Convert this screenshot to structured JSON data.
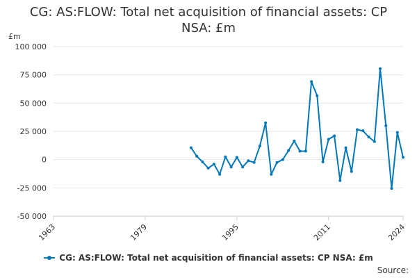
{
  "chart_data": {
    "type": "line",
    "title": "CG: AS:FLOW: Total net acquisition of financial assets: CP NSA: £m",
    "unit_label": "£m",
    "xlim": [
      1963,
      2024
    ],
    "ylim": [
      -50000,
      100000
    ],
    "x_ticks": [
      "1963",
      "1979",
      "1995",
      "2011",
      "2024"
    ],
    "y_ticks": [
      "100 000",
      "75 000",
      "50 000",
      "25 000",
      "0",
      "-25 000",
      "-50 000"
    ],
    "grid": true,
    "legend_position": "bottom",
    "series": [
      {
        "name": "CG: AS:FLOW: Total net acquisition of financial assets: CP NSA: £m",
        "color": "#0077b6",
        "x": [
          1987,
          1988,
          1989,
          1990,
          1991,
          1992,
          1993,
          1994,
          1995,
          1996,
          1997,
          1998,
          1999,
          2000,
          2001,
          2002,
          2003,
          2004,
          2005,
          2006,
          2007,
          2008,
          2009,
          2010,
          2011,
          2012,
          2013,
          2014,
          2015,
          2016,
          2017,
          2018,
          2019,
          2020,
          2021,
          2022,
          2023,
          2024
        ],
        "values": [
          10500,
          3000,
          -2000,
          -7500,
          -4000,
          -13000,
          2500,
          -6500,
          2000,
          -6500,
          -1000,
          -2500,
          12000,
          32500,
          -13000,
          -2500,
          0,
          8000,
          16500,
          7500,
          7500,
          69000,
          56500,
          -2000,
          18000,
          21000,
          -18500,
          10500,
          -10500,
          26500,
          25500,
          20000,
          16000,
          80500,
          30000,
          -25500,
          24000,
          2000
        ]
      }
    ]
  },
  "legend": {
    "label": "CG: AS:FLOW: Total net acquisition of financial assets: CP NSA: £m"
  },
  "footer": {
    "source_label": "Source:"
  }
}
